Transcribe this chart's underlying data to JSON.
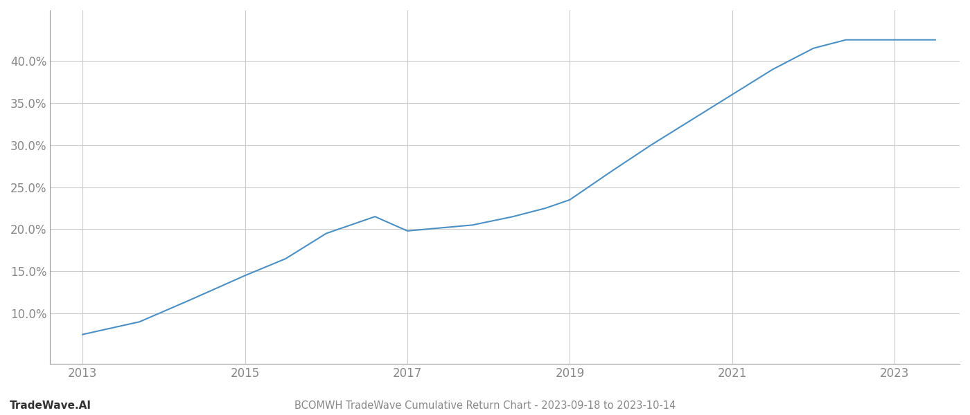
{
  "title": "BCOMWH TradeWave Cumulative Return Chart - 2023-09-18 to 2023-10-14",
  "watermark": "TradeWave.AI",
  "line_color": "#4a90c4",
  "background_color": "#ffffff",
  "grid_color": "#cccccc",
  "x_years": [
    2013.0,
    2013.7,
    2014.3,
    2015.0,
    2015.5,
    2016.0,
    2016.6,
    2017.0,
    2017.8,
    2018.3,
    2018.7,
    2019.0,
    2019.5,
    2020.0,
    2020.5,
    2021.0,
    2021.5,
    2022.0,
    2022.4,
    2022.8,
    2023.0,
    2023.5
  ],
  "y_values": [
    0.075,
    0.09,
    0.115,
    0.145,
    0.165,
    0.195,
    0.215,
    0.198,
    0.205,
    0.215,
    0.225,
    0.235,
    0.268,
    0.3,
    0.33,
    0.36,
    0.39,
    0.415,
    0.425,
    0.425,
    0.425,
    0.425
  ],
  "xlim": [
    2012.6,
    2023.8
  ],
  "ylim": [
    0.04,
    0.46
  ],
  "xticks": [
    2013,
    2015,
    2017,
    2019,
    2021,
    2023
  ],
  "yticks": [
    0.1,
    0.15,
    0.2,
    0.25,
    0.3,
    0.35,
    0.4
  ],
  "ytick_labels": [
    "10.0%",
    "15.0%",
    "20.0%",
    "25.0%",
    "30.0%",
    "35.0%",
    "40.0%"
  ],
  "line_width": 1.5,
  "title_fontsize": 10.5,
  "tick_fontsize": 12,
  "watermark_fontsize": 11,
  "title_color": "#666666",
  "tick_color": "#888888",
  "axis_color": "#999999"
}
